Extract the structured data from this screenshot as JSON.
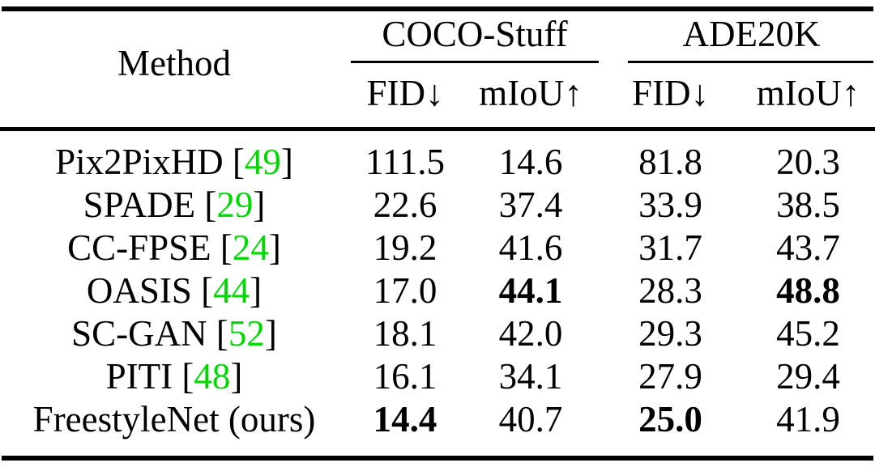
{
  "table": {
    "header": {
      "method_label": "Method",
      "groups": [
        {
          "label": "COCO-Stuff",
          "columns": [
            "FID↓",
            "mIoU↑"
          ]
        },
        {
          "label": "ADE20K",
          "columns": [
            "FID↓",
            "mIoU↑"
          ]
        }
      ]
    },
    "rows": [
      {
        "method": "Pix2PixHD",
        "citation": "49",
        "values": [
          {
            "v": "111.5",
            "bold": false
          },
          {
            "v": "14.6",
            "bold": false
          },
          {
            "v": "81.8",
            "bold": false
          },
          {
            "v": "20.3",
            "bold": false
          }
        ]
      },
      {
        "method": "SPADE",
        "citation": "29",
        "values": [
          {
            "v": "22.6",
            "bold": false
          },
          {
            "v": "37.4",
            "bold": false
          },
          {
            "v": "33.9",
            "bold": false
          },
          {
            "v": "38.5",
            "bold": false
          }
        ]
      },
      {
        "method": "CC-FPSE",
        "citation": "24",
        "values": [
          {
            "v": "19.2",
            "bold": false
          },
          {
            "v": "41.6",
            "bold": false
          },
          {
            "v": "31.7",
            "bold": false
          },
          {
            "v": "43.7",
            "bold": false
          }
        ]
      },
      {
        "method": "OASIS",
        "citation": "44",
        "values": [
          {
            "v": "17.0",
            "bold": false
          },
          {
            "v": "44.1",
            "bold": true
          },
          {
            "v": "28.3",
            "bold": false
          },
          {
            "v": "48.8",
            "bold": true
          }
        ]
      },
      {
        "method": "SC-GAN",
        "citation": "52",
        "values": [
          {
            "v": "18.1",
            "bold": false
          },
          {
            "v": "42.0",
            "bold": false
          },
          {
            "v": "29.3",
            "bold": false
          },
          {
            "v": "45.2",
            "bold": false
          }
        ]
      },
      {
        "method": "PITI",
        "citation": "48",
        "values": [
          {
            "v": "16.1",
            "bold": false
          },
          {
            "v": "34.1",
            "bold": false
          },
          {
            "v": "27.9",
            "bold": false
          },
          {
            "v": "29.4",
            "bold": false
          }
        ]
      },
      {
        "method": "FreestyleNet (ours)",
        "citation": null,
        "values": [
          {
            "v": "14.4",
            "bold": true
          },
          {
            "v": "40.7",
            "bold": false
          },
          {
            "v": "25.0",
            "bold": true
          },
          {
            "v": "41.9",
            "bold": false
          }
        ]
      }
    ],
    "colors": {
      "citation_green": "#00d800",
      "text": "#000000",
      "rules": "#000000"
    }
  },
  "chart_data": {
    "type": "table",
    "columns": [
      "Method",
      "COCO-Stuff FID↓",
      "COCO-Stuff mIoU↑",
      "ADE20K FID↓",
      "ADE20K mIoU↑"
    ],
    "rows": [
      [
        "Pix2PixHD [49]",
        111.5,
        14.6,
        81.8,
        20.3
      ],
      [
        "SPADE [29]",
        22.6,
        37.4,
        33.9,
        38.5
      ],
      [
        "CC-FPSE [24]",
        19.2,
        41.6,
        31.7,
        43.7
      ],
      [
        "OASIS [44]",
        17.0,
        44.1,
        28.3,
        48.8
      ],
      [
        "SC-GAN [52]",
        18.1,
        42.0,
        29.3,
        45.2
      ],
      [
        "PITI [48]",
        16.1,
        34.1,
        27.9,
        29.4
      ],
      [
        "FreestyleNet (ours)",
        14.4,
        40.7,
        25.0,
        41.9
      ]
    ],
    "bold_best": {
      "44.1": true,
      "48.8": true,
      "14.4": true,
      "25.0": true
    },
    "layout": "booktabs table: thick top/bottom rules, full midrule under sub-headers, partial cmidrules under group headers"
  }
}
